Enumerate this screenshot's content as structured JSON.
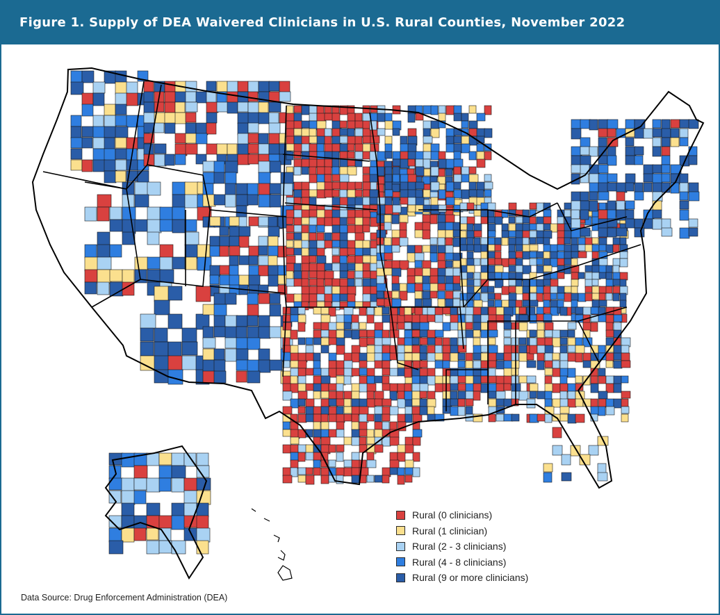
{
  "title": "Figure 1. Supply of DEA Waivered Clinicians in U.S. Rural Counties, November 2022",
  "legend": [
    {
      "label": "Rural (0 clinicians)",
      "color": "#d9413f"
    },
    {
      "label": "Rural (1 clinician)",
      "color": "#fbe08e"
    },
    {
      "label": "Rural (2 - 3 clinicians)",
      "color": "#a9d2f3"
    },
    {
      "label": "Rural (4 - 8 clinicians)",
      "color": "#2f7ee0"
    },
    {
      "label": "Rural (9 or more clinicians)",
      "color": "#2a5da8"
    }
  ],
  "source": "Data Source: Drug Enforcement Administration (DEA)"
}
